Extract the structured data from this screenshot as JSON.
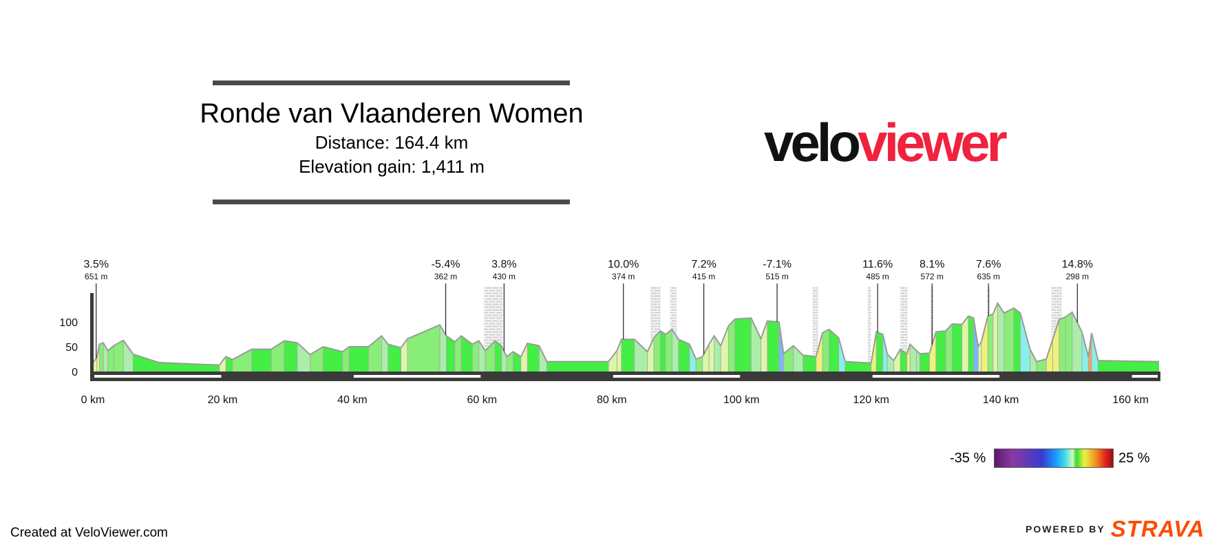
{
  "header": {
    "title": "Ronde van Vlaanderen Women",
    "distance": "Distance: 164.4 km",
    "elevation_gain": "Elevation gain: 1,411 m"
  },
  "logo": {
    "part1": "velo",
    "part2": "viewer",
    "color1": "#111111",
    "color2": "#f0223e"
  },
  "footer": {
    "created": "Created at VeloViewer.com",
    "powered": "POWERED BY",
    "strava": "STRAVA",
    "strava_color": "#fc4c02"
  },
  "legend": {
    "min_label": "-35 %",
    "max_label": "25 %"
  },
  "chart_data": {
    "type": "area",
    "x_unit": "km",
    "xlim": [
      0,
      164.4
    ],
    "ylim": [
      0,
      120
    ],
    "y_ticks": [
      0,
      50,
      100
    ],
    "x_ticks": [
      0,
      20,
      40,
      60,
      80,
      100,
      120,
      140,
      160
    ],
    "x_tick_labels": [
      "0 km",
      "20 km",
      "40 km",
      "60 km",
      "80 km",
      "100 km",
      "120 km",
      "140 km",
      "160 km"
    ],
    "profile": [
      {
        "x": 0,
        "y": 18
      },
      {
        "x": 0.6,
        "y": 28
      },
      {
        "x": 1.0,
        "y": 55
      },
      {
        "x": 1.6,
        "y": 58
      },
      {
        "x": 2.3,
        "y": 42
      },
      {
        "x": 3.2,
        "y": 52
      },
      {
        "x": 4.7,
        "y": 63
      },
      {
        "x": 6.2,
        "y": 35
      },
      {
        "x": 10.2,
        "y": 18
      },
      {
        "x": 19.5,
        "y": 13
      },
      {
        "x": 20.5,
        "y": 30
      },
      {
        "x": 21.5,
        "y": 24
      },
      {
        "x": 24.5,
        "y": 45
      },
      {
        "x": 27.5,
        "y": 45
      },
      {
        "x": 29.5,
        "y": 62
      },
      {
        "x": 31.5,
        "y": 58
      },
      {
        "x": 33.5,
        "y": 34
      },
      {
        "x": 35.5,
        "y": 50
      },
      {
        "x": 38.5,
        "y": 40
      },
      {
        "x": 39.5,
        "y": 50
      },
      {
        "x": 42.5,
        "y": 50
      },
      {
        "x": 44.5,
        "y": 72
      },
      {
        "x": 45.5,
        "y": 55
      },
      {
        "x": 47.5,
        "y": 48
      },
      {
        "x": 48.5,
        "y": 66
      },
      {
        "x": 53.5,
        "y": 94
      },
      {
        "x": 54.5,
        "y": 72
      },
      {
        "x": 55.8,
        "y": 60
      },
      {
        "x": 56.8,
        "y": 72
      },
      {
        "x": 58.5,
        "y": 55
      },
      {
        "x": 59.5,
        "y": 62
      },
      {
        "x": 60.5,
        "y": 42
      },
      {
        "x": 62.0,
        "y": 62
      },
      {
        "x": 63.0,
        "y": 52
      },
      {
        "x": 63.8,
        "y": 30
      },
      {
        "x": 64.8,
        "y": 40
      },
      {
        "x": 66.0,
        "y": 30
      },
      {
        "x": 67.0,
        "y": 57
      },
      {
        "x": 68.8,
        "y": 52
      },
      {
        "x": 70.0,
        "y": 20
      },
      {
        "x": 79.5,
        "y": 20
      },
      {
        "x": 80.8,
        "y": 42
      },
      {
        "x": 81.5,
        "y": 65
      },
      {
        "x": 83.5,
        "y": 65
      },
      {
        "x": 85.5,
        "y": 40
      },
      {
        "x": 86.5,
        "y": 68
      },
      {
        "x": 87.5,
        "y": 82
      },
      {
        "x": 88.3,
        "y": 75
      },
      {
        "x": 89.3,
        "y": 85
      },
      {
        "x": 90.3,
        "y": 65
      },
      {
        "x": 92.0,
        "y": 55
      },
      {
        "x": 93.0,
        "y": 25
      },
      {
        "x": 94.0,
        "y": 30
      },
      {
        "x": 95.0,
        "y": 55
      },
      {
        "x": 95.8,
        "y": 72
      },
      {
        "x": 96.8,
        "y": 52
      },
      {
        "x": 98.0,
        "y": 92
      },
      {
        "x": 99.0,
        "y": 106
      },
      {
        "x": 101.5,
        "y": 108
      },
      {
        "x": 103.0,
        "y": 66
      },
      {
        "x": 104.0,
        "y": 102
      },
      {
        "x": 105.8,
        "y": 100
      },
      {
        "x": 106.5,
        "y": 36
      },
      {
        "x": 108.0,
        "y": 52
      },
      {
        "x": 109.5,
        "y": 33
      },
      {
        "x": 111.5,
        "y": 30
      },
      {
        "x": 112.5,
        "y": 78
      },
      {
        "x": 113.5,
        "y": 85
      },
      {
        "x": 115.0,
        "y": 68
      },
      {
        "x": 116.0,
        "y": 20
      },
      {
        "x": 120.0,
        "y": 17
      },
      {
        "x": 120.8,
        "y": 80
      },
      {
        "x": 121.8,
        "y": 75
      },
      {
        "x": 122.5,
        "y": 35
      },
      {
        "x": 123.5,
        "y": 22
      },
      {
        "x": 124.5,
        "y": 45
      },
      {
        "x": 125.5,
        "y": 35
      },
      {
        "x": 126.0,
        "y": 55
      },
      {
        "x": 127.0,
        "y": 42
      },
      {
        "x": 127.5,
        "y": 36
      },
      {
        "x": 129.0,
        "y": 37
      },
      {
        "x": 130.0,
        "y": 80
      },
      {
        "x": 131.5,
        "y": 82
      },
      {
        "x": 132.5,
        "y": 96
      },
      {
        "x": 134.0,
        "y": 95
      },
      {
        "x": 135.0,
        "y": 112
      },
      {
        "x": 135.8,
        "y": 108
      },
      {
        "x": 136.5,
        "y": 50
      },
      {
        "x": 137.0,
        "y": 60
      },
      {
        "x": 138.0,
        "y": 112
      },
      {
        "x": 138.8,
        "y": 116
      },
      {
        "x": 139.5,
        "y": 138
      },
      {
        "x": 140.5,
        "y": 118
      },
      {
        "x": 142.0,
        "y": 128
      },
      {
        "x": 143.0,
        "y": 118
      },
      {
        "x": 144.5,
        "y": 45
      },
      {
        "x": 145.5,
        "y": 20
      },
      {
        "x": 147.0,
        "y": 25
      },
      {
        "x": 148.0,
        "y": 65
      },
      {
        "x": 149.0,
        "y": 105
      },
      {
        "x": 150.0,
        "y": 110
      },
      {
        "x": 151.0,
        "y": 120
      },
      {
        "x": 152.5,
        "y": 80
      },
      {
        "x": 153.5,
        "y": 30
      },
      {
        "x": 154.0,
        "y": 78
      },
      {
        "x": 155.0,
        "y": 22
      },
      {
        "x": 164.4,
        "y": 20
      }
    ],
    "climbs": [
      {
        "x": 0.5,
        "gradient": "3.5%",
        "length": "651 m"
      },
      {
        "x": 54.4,
        "gradient": "-5.4%",
        "length": "362 m"
      },
      {
        "x": 63.4,
        "gradient": "3.8%",
        "length": "430 m"
      },
      {
        "x": 81.8,
        "gradient": "10.0%",
        "length": "374 m"
      },
      {
        "x": 94.2,
        "gradient": "7.2%",
        "length": "415 m"
      },
      {
        "x": 105.5,
        "gradient": "-7.1%",
        "length": "515 m"
      },
      {
        "x": 121.0,
        "gradient": "11.6%",
        "length": "485 m"
      },
      {
        "x": 129.4,
        "gradient": "8.1%",
        "length": "572 m"
      },
      {
        "x": 138.1,
        "gradient": "7.6%",
        "length": "635 m"
      },
      {
        "x": 151.8,
        "gradient": "14.8%",
        "length": "298 m"
      }
    ],
    "cobbles": [
      {
        "x0": 60.3,
        "x1": 63.2
      },
      {
        "x0": 86.0,
        "x1": 87.5
      },
      {
        "x0": 89.0,
        "x1": 90.0
      },
      {
        "x0": 111.0,
        "x1": 111.8
      },
      {
        "x0": 119.5,
        "x1": 120.0
      },
      {
        "x0": 124.5,
        "x1": 125.6
      },
      {
        "x0": 129.2,
        "x1": 129.6
      },
      {
        "x0": 137.9,
        "x1": 138.3
      },
      {
        "x0": 147.8,
        "x1": 149.4
      }
    ],
    "colors": {
      "flat": "#44ee44",
      "light": "#88ee77",
      "palegreen": "#aaeeaa",
      "yellowish": "#ddf7a8",
      "cyan": "#88f0e6",
      "yellow": "#eef27a",
      "orange": "#f7a35c",
      "red": "#ee5533",
      "blue": "#7ab6ff"
    }
  }
}
